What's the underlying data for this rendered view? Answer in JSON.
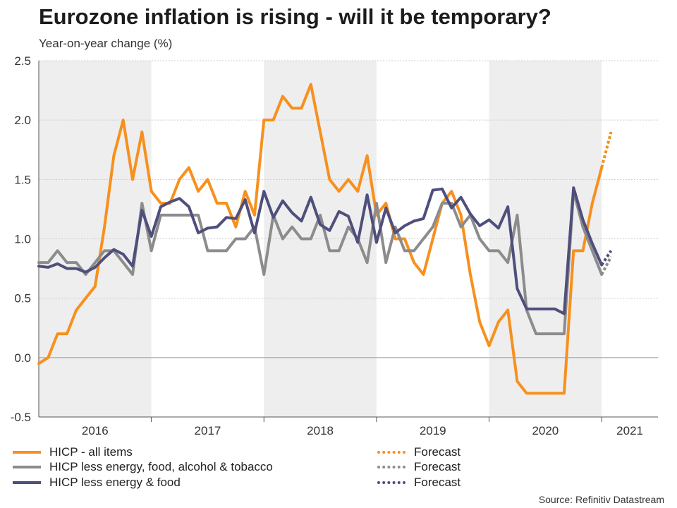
{
  "title": "Eurozone inflation is rising - will it be temporary?",
  "subtitle": "Year-on-year change (%)",
  "source": "Source: Refinitiv Datastream",
  "colors": {
    "hicp": "#f7901e",
    "core": "#8c8c8c",
    "ex_energy_food": "#4f4f7c",
    "shade": "#eeeeee",
    "grid": "#cccccc",
    "zero": "#999999"
  },
  "legend": [
    {
      "label": "HICP - all items",
      "forecast_label": "Forecast",
      "color": "#f7901e"
    },
    {
      "label": "HICP less energy, food, alcohol & tobacco",
      "forecast_label": "Forecast",
      "color": "#8c8c8c"
    },
    {
      "label": "HICP less energy & food",
      "forecast_label": "Forecast",
      "color": "#4f4f7c"
    }
  ],
  "chart_data": {
    "type": "line",
    "title": "Eurozone inflation is rising - will it be temporary?",
    "ylabel": "Year-on-year change (%)",
    "ylim": [
      -0.5,
      2.5
    ],
    "yticks": [
      -0.5,
      0.0,
      0.5,
      1.0,
      1.5,
      2.0,
      2.5
    ],
    "ytick_labels": [
      "-0.5",
      "0.0",
      "0.5",
      "1.0",
      "1.5",
      "2.0",
      "2.5"
    ],
    "x_start": "2016-01",
    "x_unit": "month index from Jan 2016",
    "xlim": [
      0,
      66
    ],
    "years": [
      "2016",
      "2017",
      "2018",
      "2019",
      "2020",
      "2021"
    ],
    "year_starts": [
      0,
      12,
      24,
      36,
      48,
      60
    ],
    "shaded_years": [
      "2016",
      "2018",
      "2020"
    ],
    "grid": true,
    "series": [
      {
        "name": "HICP - all items",
        "color": "#f7901e",
        "values": [
          -0.05,
          0.0,
          0.2,
          0.2,
          0.4,
          0.5,
          0.6,
          1.1,
          1.7,
          2.0,
          1.5,
          1.9,
          1.4,
          1.3,
          1.3,
          1.5,
          1.6,
          1.4,
          1.5,
          1.3,
          1.3,
          1.1,
          1.4,
          1.2,
          2.0,
          2.0,
          2.2,
          2.1,
          2.1,
          2.3,
          1.9,
          1.5,
          1.4,
          1.5,
          1.4,
          1.7,
          1.2,
          1.3,
          1.0,
          1.0,
          0.8,
          0.7,
          1.0,
          1.3,
          1.4,
          1.2,
          0.7,
          0.3,
          0.1,
          0.3,
          0.4,
          -0.2,
          -0.3,
          -0.3,
          -0.3,
          -0.3,
          -0.3,
          0.9,
          0.9,
          1.3,
          1.6
        ],
        "forecast": [
          1.6,
          1.9
        ]
      },
      {
        "name": "HICP less energy, food, alcohol & tobacco",
        "color": "#8c8c8c",
        "values": [
          0.8,
          0.8,
          0.9,
          0.8,
          0.8,
          0.7,
          0.8,
          0.9,
          0.9,
          0.8,
          0.7,
          1.3,
          0.9,
          1.2,
          1.2,
          1.2,
          1.2,
          1.2,
          0.9,
          0.9,
          0.9,
          1.0,
          1.0,
          1.1,
          0.7,
          1.2,
          1.0,
          1.1,
          1.0,
          1.0,
          1.2,
          0.9,
          0.9,
          1.1,
          1.0,
          0.8,
          1.3,
          0.8,
          1.1,
          0.9,
          0.9,
          1.0,
          1.1,
          1.3,
          1.3,
          1.1,
          1.2,
          1.0,
          0.9,
          0.9,
          0.8,
          1.2,
          0.4,
          0.2,
          0.2,
          0.2,
          0.2,
          1.4,
          1.1,
          0.9,
          0.7
        ],
        "forecast": [
          0.7,
          0.85
        ]
      },
      {
        "name": "HICP less energy & food",
        "color": "#4f4f7c",
        "values": [
          0.77,
          0.76,
          0.79,
          0.75,
          0.75,
          0.72,
          0.76,
          0.84,
          0.91,
          0.87,
          0.77,
          1.24,
          1.02,
          1.27,
          1.31,
          1.34,
          1.27,
          1.05,
          1.09,
          1.1,
          1.18,
          1.17,
          1.33,
          1.05,
          1.4,
          1.18,
          1.32,
          1.22,
          1.15,
          1.35,
          1.12,
          1.07,
          1.23,
          1.19,
          0.97,
          1.37,
          0.97,
          1.26,
          1.05,
          1.11,
          1.15,
          1.17,
          1.41,
          1.42,
          1.26,
          1.35,
          1.21,
          1.11,
          1.16,
          1.09,
          1.27,
          0.58,
          0.41,
          0.41,
          0.41,
          0.41,
          0.37,
          1.43,
          1.16,
          0.96,
          0.78
        ],
        "forecast": [
          0.78,
          0.9
        ]
      }
    ]
  }
}
